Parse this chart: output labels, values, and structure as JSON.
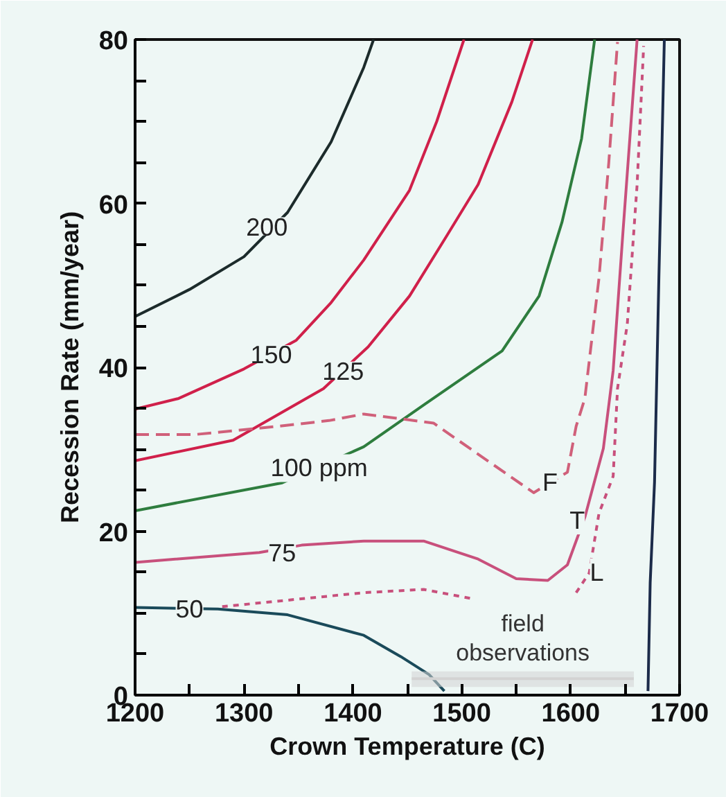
{
  "chart_data": {
    "type": "line",
    "xlabel": "Crown Temperature (C)",
    "ylabel": "Recession Rate (mm/year)",
    "xlim": [
      1200,
      1700
    ],
    "ylim": [
      0,
      80
    ],
    "xticks": [
      1200,
      {
        "value": 1250,
        "label": null
      },
      1300,
      {
        "value": 1350,
        "label": null
      },
      1400,
      {
        "value": 1450,
        "label": null
      },
      1500,
      {
        "value": 1550,
        "label": null
      },
      1600,
      {
        "value": 1650,
        "label": null
      },
      1700
    ],
    "yticks": [
      0,
      {
        "value": 5,
        "label": null
      },
      {
        "value": 10,
        "label": null
      },
      {
        "value": 15,
        "label": null
      },
      20,
      {
        "value": 25,
        "label": null
      },
      {
        "value": 30,
        "label": null
      },
      {
        "value": 35,
        "label": null
      },
      40,
      {
        "value": 45,
        "label": null
      },
      {
        "value": 50,
        "label": null
      },
      {
        "value": 55,
        "label": null
      },
      60,
      {
        "value": 65,
        "label": null
      },
      {
        "value": 70,
        "label": null
      },
      {
        "value": 75,
        "label": null
      },
      80
    ],
    "grid": false,
    "legend": false,
    "series": [
      {
        "color": "#1c2b2b",
        "line_style": "solid",
        "x": [
          1200,
          1250,
          1300,
          1340,
          1380,
          1410,
          1419
        ],
        "values": [
          46.2,
          49.5,
          53.5,
          58.9,
          67.5,
          76.6,
          80
        ]
      },
      {
        "color": "#d0204a",
        "line_style": "solid",
        "x": [
          1200,
          1240,
          1300,
          1348,
          1380,
          1410,
          1452,
          1477,
          1502
        ],
        "values": [
          34.9,
          36.2,
          39.8,
          43.3,
          47.9,
          53.1,
          61.6,
          70,
          80
        ]
      },
      {
        "color": "#d0204a",
        "line_style": "solid",
        "x": [
          1200,
          1290,
          1373,
          1414,
          1452,
          1486,
          1515,
          1546,
          1565
        ],
        "values": [
          28.6,
          31.1,
          37.4,
          42.5,
          48.7,
          56,
          62.3,
          72.4,
          80
        ]
      },
      {
        "color": "#2e7d3e",
        "line_style": "solid",
        "x": [
          1200,
          1335,
          1410,
          1465,
          1537,
          1571,
          1592,
          1610,
          1622
        ],
        "values": [
          22.5,
          25.9,
          30.3,
          35.4,
          42,
          48.7,
          57.7,
          67.9,
          80
        ]
      },
      {
        "color": "#c8507c",
        "line_style": "solid",
        "x": [
          1200,
          1314,
          1353,
          1410,
          1465,
          1515,
          1550,
          1579,
          1597,
          1613,
          1630,
          1639,
          1648,
          1661
        ],
        "values": [
          16.2,
          17.4,
          18.3,
          18.8,
          18.8,
          16.6,
          14.2,
          14,
          15.9,
          21.7,
          30.1,
          39.6,
          56.5,
          80
        ]
      },
      {
        "color": "#d0607a",
        "line_style": "dashed",
        "x": [
          1200,
          1255,
          1331,
          1378,
          1410,
          1474,
          1515,
          1566,
          1597,
          1605,
          1613,
          1626,
          1635,
          1643
        ],
        "values": [
          31.8,
          31.8,
          32.8,
          33.5,
          34.3,
          33.2,
          29.4,
          24.7,
          27.2,
          32.8,
          36.2,
          50.9,
          65,
          79.7
        ]
      },
      {
        "color": "#c8507c",
        "line_style": "dotted",
        "x": [
          1280,
          1410,
          1465,
          1512,
          1560,
          1605,
          1617,
          1626,
          1639,
          1643,
          1652,
          1661,
          1667
        ],
        "values": [
          10.8,
          12.5,
          12.9,
          11.7,
          null,
          12.5,
          14.9,
          22.2,
          26.7,
          37.4,
          45.3,
          62.3,
          79.2
        ]
      },
      {
        "color": "#1a4a5a",
        "line_style": "solid",
        "x": [
          1200,
          1276,
          1340,
          1410,
          1444,
          1470,
          1484
        ],
        "values": [
          10.7,
          10.5,
          9.8,
          7.3,
          4.7,
          2.5,
          0.5
        ]
      },
      {
        "color": "#1c2b4a",
        "line_style": "solid",
        "x": [
          1671,
          1673,
          1677,
          1681,
          1683,
          1686
        ],
        "values": [
          0.5,
          13.7,
          26,
          51,
          62.3,
          80
        ]
      },
      {
        "name": "field\nobservations",
        "color": "#d3d3d3",
        "line_style": "solid",
        "x": [
          1454,
          1658
        ],
        "values": [
          2,
          2
        ],
        "lower": [
          1,
          1
        ],
        "upper": [
          2.9,
          2.9
        ]
      }
    ],
    "annotations": [
      {
        "text": "200",
        "x": 1321,
        "y": 57.2
      },
      {
        "text": "150",
        "x": 1325,
        "y": 41.6
      },
      {
        "text": "125",
        "x": 1391,
        "y": 39.6
      },
      {
        "text": "100 ppm",
        "x": 1369,
        "y": 27.7
      },
      {
        "text": "75",
        "x": 1335,
        "y": 17.4
      },
      {
        "text": "50",
        "x": 1250,
        "y": 10.6
      },
      {
        "text": "F",
        "x": 1581,
        "y": 26
      },
      {
        "text": "T",
        "x": 1606,
        "y": 21.3
      },
      {
        "text": "L",
        "x": 1624,
        "y": 15
      }
    ]
  }
}
